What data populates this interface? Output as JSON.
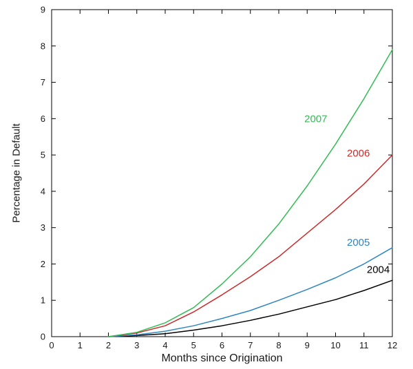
{
  "chart_data": {
    "type": "line",
    "title": "",
    "xlabel": "Months since Origination",
    "ylabel": "Percentage in Default",
    "xlim": [
      0,
      12
    ],
    "ylim": [
      0,
      9
    ],
    "xticks": [
      0,
      1,
      2,
      3,
      4,
      5,
      6,
      7,
      8,
      9,
      10,
      11,
      12
    ],
    "yticks": [
      0,
      1,
      2,
      3,
      4,
      5,
      6,
      7,
      8,
      9
    ],
    "grid": false,
    "legend_position": "inline-labels",
    "x": [
      2,
      3,
      4,
      5,
      6,
      7,
      8,
      9,
      10,
      11,
      12
    ],
    "series": [
      {
        "name": "2004",
        "color": "#000000",
        "values": [
          0,
          0.03,
          0.08,
          0.18,
          0.3,
          0.45,
          0.62,
          0.82,
          1.02,
          1.27,
          1.55
        ],
        "label": "2004",
        "label_x": 11.1,
        "label_y": 1.85
      },
      {
        "name": "2005",
        "color": "#2e86c1",
        "values": [
          0,
          0.05,
          0.15,
          0.3,
          0.5,
          0.72,
          1.0,
          1.3,
          1.62,
          2.0,
          2.45
        ],
        "label": "2005",
        "label_x": 10.4,
        "label_y": 2.6
      },
      {
        "name": "2006",
        "color": "#cc2929",
        "values": [
          0,
          0.1,
          0.3,
          0.68,
          1.15,
          1.65,
          2.2,
          2.85,
          3.5,
          4.2,
          5.0
        ],
        "label": "2006",
        "label_x": 10.4,
        "label_y": 5.05
      },
      {
        "name": "2007",
        "color": "#33bb55",
        "values": [
          0,
          0.12,
          0.38,
          0.8,
          1.45,
          2.2,
          3.1,
          4.15,
          5.3,
          6.55,
          7.9
        ],
        "label": "2007",
        "label_x": 8.9,
        "label_y": 6.0
      }
    ]
  }
}
